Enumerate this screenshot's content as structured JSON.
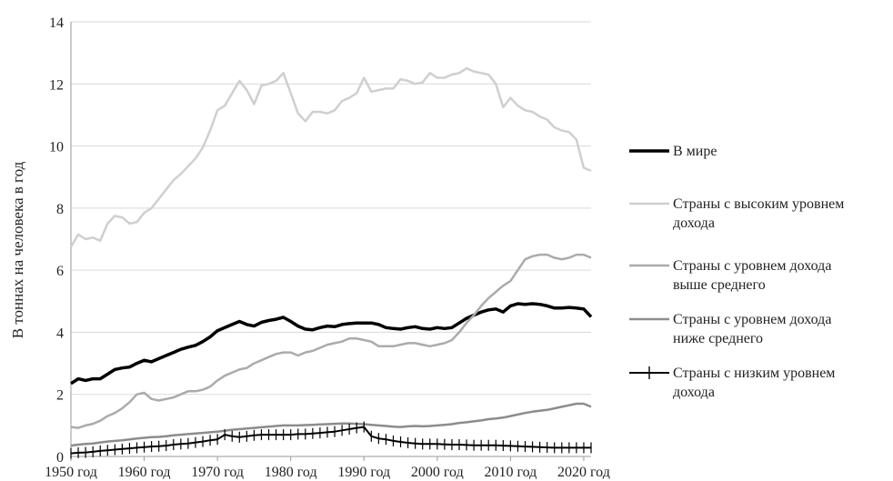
{
  "chart_data": {
    "type": "line",
    "xlabel": "",
    "ylabel": "В тоннах на человека в год",
    "ylim": [
      0,
      14
    ],
    "xlim": [
      1950,
      2021
    ],
    "yticks": [
      0,
      2,
      4,
      6,
      8,
      10,
      12,
      14
    ],
    "xticks": [
      {
        "value": 1950,
        "label": "1950 год"
      },
      {
        "value": 1960,
        "label": "1960 год"
      },
      {
        "value": 1970,
        "label": "1970 год"
      },
      {
        "value": 1980,
        "label": "1980 год"
      },
      {
        "value": 1990,
        "label": "1990 год"
      },
      {
        "value": 2000,
        "label": "2000 год"
      },
      {
        "value": 2010,
        "label": "2010 год"
      },
      {
        "value": 2020,
        "label": "2020 год"
      }
    ],
    "grid": {
      "horizontal": true,
      "vertical": false
    },
    "legend_position": "right",
    "series": [
      {
        "name": "В мире",
        "color": "#000000",
        "style": "thick",
        "x": [
          1950,
          1951,
          1952,
          1953,
          1954,
          1955,
          1956,
          1957,
          1958,
          1959,
          1960,
          1961,
          1962,
          1963,
          1964,
          1965,
          1966,
          1967,
          1968,
          1969,
          1970,
          1971,
          1972,
          1973,
          1974,
          1975,
          1976,
          1977,
          1978,
          1979,
          1980,
          1981,
          1982,
          1983,
          1984,
          1985,
          1986,
          1987,
          1988,
          1989,
          1990,
          1991,
          1992,
          1993,
          1994,
          1995,
          1996,
          1997,
          1998,
          1999,
          2000,
          2001,
          2002,
          2003,
          2004,
          2005,
          2006,
          2007,
          2008,
          2009,
          2010,
          2011,
          2012,
          2013,
          2014,
          2015,
          2016,
          2017,
          2018,
          2019,
          2020,
          2021
        ],
        "values": [
          2.35,
          2.5,
          2.45,
          2.5,
          2.5,
          2.65,
          2.8,
          2.85,
          2.88,
          3.0,
          3.1,
          3.05,
          3.15,
          3.25,
          3.35,
          3.45,
          3.52,
          3.58,
          3.7,
          3.85,
          4.05,
          4.15,
          4.25,
          4.35,
          4.25,
          4.2,
          4.32,
          4.38,
          4.42,
          4.48,
          4.35,
          4.2,
          4.1,
          4.08,
          4.15,
          4.2,
          4.18,
          4.25,
          4.28,
          4.3,
          4.3,
          4.3,
          4.25,
          4.15,
          4.12,
          4.1,
          4.15,
          4.18,
          4.12,
          4.1,
          4.15,
          4.12,
          4.15,
          4.3,
          4.45,
          4.55,
          4.65,
          4.72,
          4.75,
          4.65,
          4.85,
          4.92,
          4.9,
          4.92,
          4.9,
          4.85,
          4.78,
          4.78,
          4.8,
          4.78,
          4.75,
          4.5
        ]
      },
      {
        "name": "Страны с высоким уровнем дохода",
        "color": "#cfcfcf",
        "style": "plain",
        "x": [
          1950,
          1951,
          1952,
          1953,
          1954,
          1955,
          1956,
          1957,
          1958,
          1959,
          1960,
          1961,
          1962,
          1963,
          1964,
          1965,
          1966,
          1967,
          1968,
          1969,
          1970,
          1971,
          1972,
          1973,
          1974,
          1975,
          1976,
          1977,
          1978,
          1979,
          1980,
          1981,
          1982,
          1983,
          1984,
          1985,
          1986,
          1987,
          1988,
          1989,
          1990,
          1991,
          1992,
          1993,
          1994,
          1995,
          1996,
          1997,
          1998,
          1999,
          2000,
          2001,
          2002,
          2003,
          2004,
          2005,
          2006,
          2007,
          2008,
          2009,
          2010,
          2011,
          2012,
          2013,
          2014,
          2015,
          2016,
          2017,
          2018,
          2019,
          2020,
          2021
        ],
        "values": [
          6.75,
          7.15,
          7.0,
          7.05,
          6.95,
          7.5,
          7.75,
          7.7,
          7.5,
          7.55,
          7.85,
          8.0,
          8.3,
          8.6,
          8.9,
          9.1,
          9.35,
          9.6,
          9.95,
          10.5,
          11.15,
          11.3,
          11.7,
          12.1,
          11.8,
          11.35,
          11.95,
          12.0,
          12.1,
          12.35,
          11.7,
          11.05,
          10.8,
          11.1,
          11.1,
          11.05,
          11.15,
          11.45,
          11.55,
          11.7,
          12.2,
          11.75,
          11.8,
          11.85,
          11.85,
          12.15,
          12.1,
          12.0,
          12.05,
          12.35,
          12.2,
          12.2,
          12.3,
          12.35,
          12.5,
          12.4,
          12.35,
          12.3,
          12.0,
          11.25,
          11.55,
          11.3,
          11.15,
          11.1,
          10.95,
          10.85,
          10.6,
          10.5,
          10.45,
          10.2,
          9.3,
          9.2
        ]
      },
      {
        "name": "Страны с уровнем дохода выше среднего",
        "color": "#ababab",
        "style": "plain",
        "x": [
          1950,
          1951,
          1952,
          1953,
          1954,
          1955,
          1956,
          1957,
          1958,
          1959,
          1960,
          1961,
          1962,
          1963,
          1964,
          1965,
          1966,
          1967,
          1968,
          1969,
          1970,
          1971,
          1972,
          1973,
          1974,
          1975,
          1976,
          1977,
          1978,
          1979,
          1980,
          1981,
          1982,
          1983,
          1984,
          1985,
          1986,
          1987,
          1988,
          1989,
          1990,
          1991,
          1992,
          1993,
          1994,
          1995,
          1996,
          1997,
          1998,
          1999,
          2000,
          2001,
          2002,
          2003,
          2004,
          2005,
          2006,
          2007,
          2008,
          2009,
          2010,
          2011,
          2012,
          2013,
          2014,
          2015,
          2016,
          2017,
          2018,
          2019,
          2020,
          2021
        ],
        "values": [
          0.95,
          0.92,
          1.0,
          1.05,
          1.15,
          1.3,
          1.4,
          1.55,
          1.75,
          2.0,
          2.05,
          1.85,
          1.8,
          1.85,
          1.9,
          2.0,
          2.1,
          2.1,
          2.15,
          2.25,
          2.45,
          2.6,
          2.7,
          2.8,
          2.85,
          3.0,
          3.1,
          3.2,
          3.3,
          3.35,
          3.35,
          3.25,
          3.35,
          3.4,
          3.5,
          3.6,
          3.65,
          3.7,
          3.8,
          3.8,
          3.75,
          3.7,
          3.55,
          3.55,
          3.55,
          3.6,
          3.65,
          3.65,
          3.6,
          3.55,
          3.6,
          3.65,
          3.75,
          4.0,
          4.3,
          4.55,
          4.85,
          5.1,
          5.3,
          5.5,
          5.65,
          6.0,
          6.35,
          6.45,
          6.5,
          6.5,
          6.4,
          6.35,
          6.4,
          6.5,
          6.5,
          6.4
        ]
      },
      {
        "name": "Страны с уровнем дохода ниже среднего",
        "color": "#8c8c8c",
        "style": "plain",
        "x": [
          1950,
          1951,
          1952,
          1953,
          1954,
          1955,
          1956,
          1957,
          1958,
          1959,
          1960,
          1961,
          1962,
          1963,
          1964,
          1965,
          1966,
          1967,
          1968,
          1969,
          1970,
          1971,
          1972,
          1973,
          1974,
          1975,
          1976,
          1977,
          1978,
          1979,
          1980,
          1981,
          1982,
          1983,
          1984,
          1985,
          1986,
          1987,
          1988,
          1989,
          1990,
          1991,
          1992,
          1993,
          1994,
          1995,
          1996,
          1997,
          1998,
          1999,
          2000,
          2001,
          2002,
          2003,
          2004,
          2005,
          2006,
          2007,
          2008,
          2009,
          2010,
          2011,
          2012,
          2013,
          2014,
          2015,
          2016,
          2017,
          2018,
          2019,
          2020,
          2021
        ],
        "values": [
          0.35,
          0.38,
          0.4,
          0.42,
          0.45,
          0.48,
          0.5,
          0.52,
          0.55,
          0.58,
          0.6,
          0.62,
          0.63,
          0.65,
          0.68,
          0.7,
          0.72,
          0.74,
          0.76,
          0.78,
          0.8,
          0.83,
          0.86,
          0.88,
          0.9,
          0.92,
          0.94,
          0.96,
          0.98,
          1.0,
          1.0,
          1.0,
          1.01,
          1.02,
          1.03,
          1.04,
          1.05,
          1.06,
          1.06,
          1.05,
          1.04,
          1.02,
          1.0,
          0.98,
          0.96,
          0.95,
          0.97,
          0.98,
          0.97,
          0.98,
          1.0,
          1.02,
          1.04,
          1.08,
          1.1,
          1.13,
          1.16,
          1.2,
          1.22,
          1.25,
          1.3,
          1.35,
          1.4,
          1.44,
          1.47,
          1.5,
          1.55,
          1.6,
          1.65,
          1.7,
          1.7,
          1.6
        ]
      },
      {
        "name": "Страны с низким уровнем дохода",
        "color": "#000000",
        "style": "cross",
        "x": [
          1950,
          1951,
          1952,
          1953,
          1954,
          1955,
          1956,
          1957,
          1958,
          1959,
          1960,
          1961,
          1962,
          1963,
          1964,
          1965,
          1966,
          1967,
          1968,
          1969,
          1970,
          1971,
          1972,
          1973,
          1974,
          1975,
          1976,
          1977,
          1978,
          1979,
          1980,
          1981,
          1982,
          1983,
          1984,
          1985,
          1986,
          1987,
          1988,
          1989,
          1990,
          1991,
          1992,
          1993,
          1994,
          1995,
          1996,
          1997,
          1998,
          1999,
          2000,
          2001,
          2002,
          2003,
          2004,
          2005,
          2006,
          2007,
          2008,
          2009,
          2010,
          2011,
          2012,
          2013,
          2014,
          2015,
          2016,
          2017,
          2018,
          2019,
          2020,
          2021
        ],
        "values": [
          0.1,
          0.12,
          0.13,
          0.15,
          0.18,
          0.2,
          0.22,
          0.24,
          0.26,
          0.28,
          0.3,
          0.32,
          0.33,
          0.35,
          0.38,
          0.4,
          0.42,
          0.45,
          0.48,
          0.52,
          0.55,
          0.7,
          0.65,
          0.62,
          0.65,
          0.68,
          0.7,
          0.7,
          0.7,
          0.7,
          0.7,
          0.72,
          0.72,
          0.74,
          0.76,
          0.78,
          0.8,
          0.84,
          0.88,
          0.92,
          0.95,
          0.65,
          0.58,
          0.55,
          0.5,
          0.47,
          0.44,
          0.42,
          0.4,
          0.4,
          0.4,
          0.39,
          0.38,
          0.38,
          0.37,
          0.36,
          0.36,
          0.36,
          0.36,
          0.35,
          0.34,
          0.33,
          0.32,
          0.31,
          0.3,
          0.29,
          0.28,
          0.28,
          0.28,
          0.28,
          0.28,
          0.28
        ]
      }
    ]
  }
}
